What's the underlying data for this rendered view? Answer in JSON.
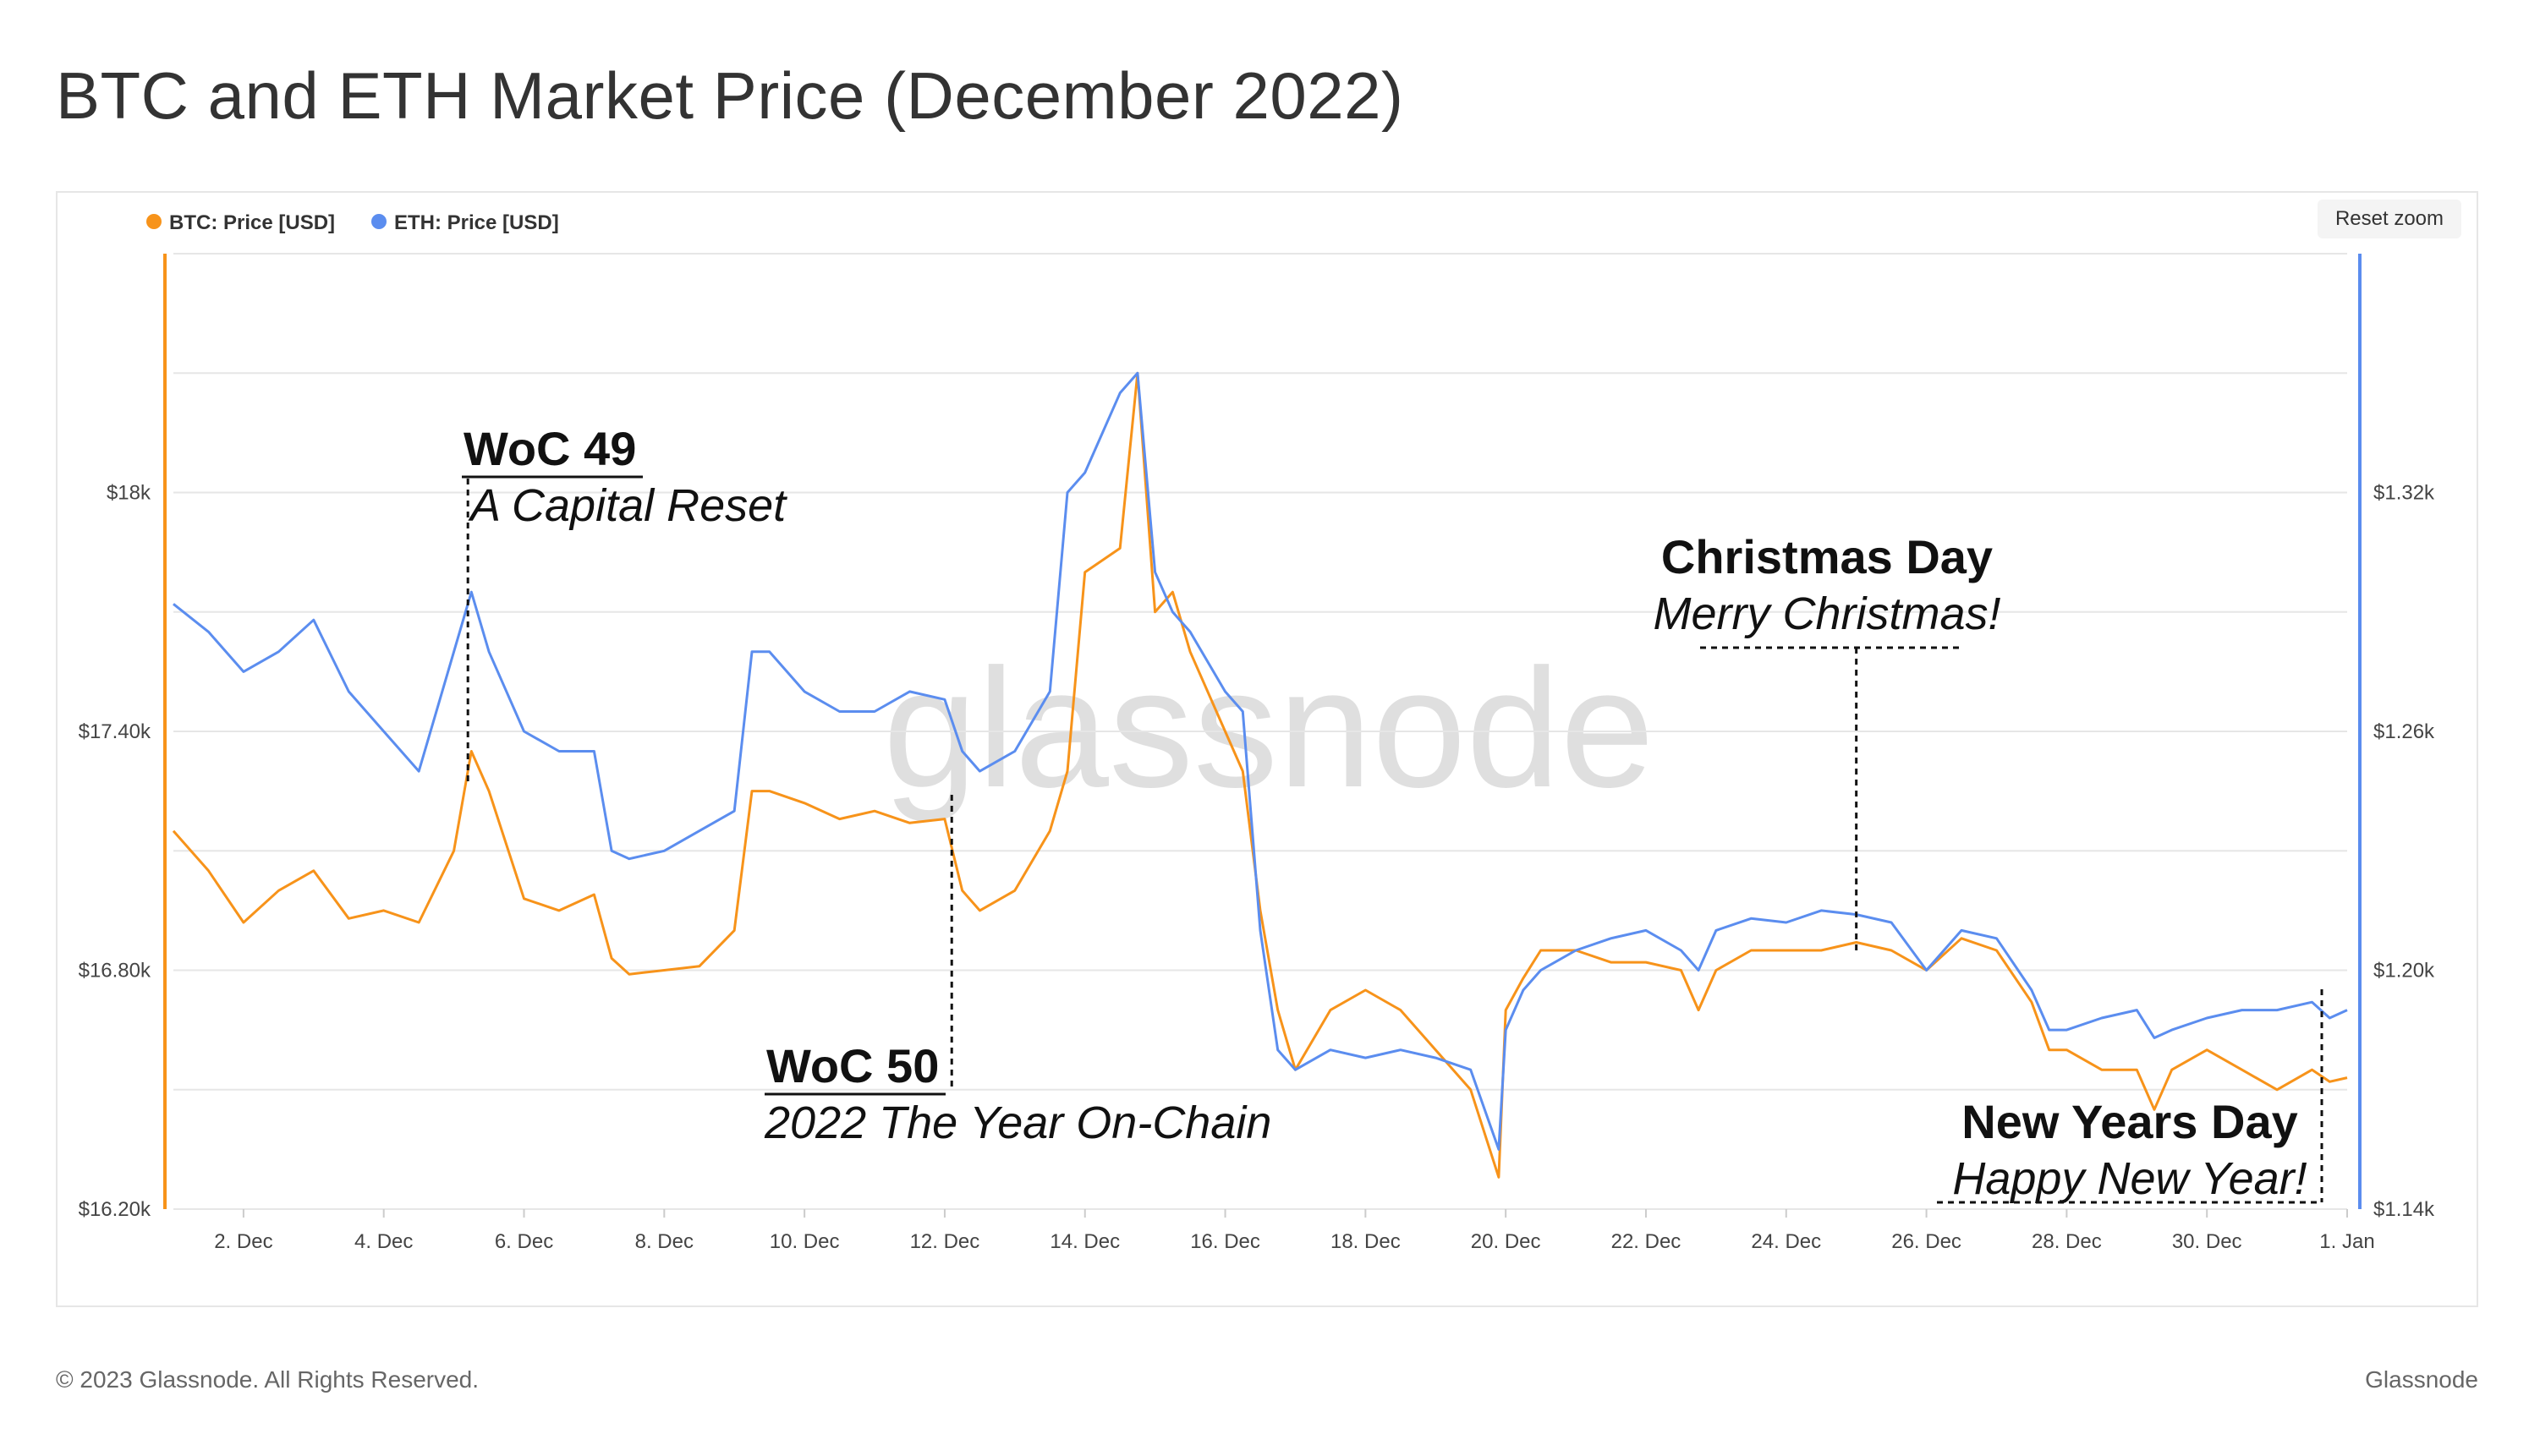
{
  "title": "BTC and ETH Market Price (December 2022)",
  "footer": {
    "copyright": "© 2023 Glassnode. All Rights Reserved.",
    "brand": "Glassnode"
  },
  "watermark": "glassnode",
  "reset_zoom_label": "Reset zoom",
  "colors": {
    "btc": "#f7931a",
    "eth": "#5b8def",
    "grid": "#e6e6e6",
    "annotation": "#111111"
  },
  "chart_data": {
    "type": "line",
    "title": "BTC and ETH Market Price (December 2022)",
    "legend_position": "top-left",
    "grid": true,
    "x_tick_labels": [
      "2. Dec",
      "4. Dec",
      "6. Dec",
      "8. Dec",
      "10. Dec",
      "12. Dec",
      "14. Dec",
      "16. Dec",
      "18. Dec",
      "20. Dec",
      "22. Dec",
      "24. Dec",
      "26. Dec",
      "28. Dec",
      "30. Dec",
      "1. Jan"
    ],
    "xlim": [
      1,
      32
    ],
    "y_left": {
      "ticks": [
        "$16.20k",
        "$16.80k",
        "$17.40k",
        "$18k"
      ],
      "range": [
        16200,
        18600
      ]
    },
    "y_right": {
      "ticks": [
        "$1.14k",
        "$1.20k",
        "$1.26k",
        "$1.32k"
      ],
      "range": [
        1140,
        1380
      ]
    },
    "series": [
      {
        "name": "BTC: Price [USD]",
        "axis": "left",
        "x": [
          1,
          1.5,
          2,
          2.5,
          3,
          3.5,
          4,
          4.5,
          5,
          5.25,
          5.5,
          6,
          6.5,
          7,
          7.25,
          7.5,
          8,
          8.5,
          9,
          9.25,
          9.5,
          10,
          10.5,
          11,
          11.5,
          12,
          12.25,
          12.5,
          13,
          13.5,
          13.75,
          14,
          14.5,
          14.75,
          15,
          15.25,
          15.5,
          16,
          16.25,
          16.5,
          16.75,
          17,
          17.5,
          18,
          18.5,
          19,
          19.5,
          19.9,
          20,
          20.25,
          20.5,
          21,
          21.5,
          22,
          22.5,
          22.75,
          23,
          23.5,
          24,
          24.5,
          25,
          25.5,
          26,
          26.5,
          27,
          27.5,
          27.75,
          28,
          28.5,
          29,
          29.25,
          29.5,
          30,
          30.5,
          31,
          31.5,
          31.75,
          32
        ],
        "values": [
          17150,
          17050,
          16920,
          17000,
          17050,
          16930,
          16950,
          16920,
          17100,
          17350,
          17250,
          16980,
          16950,
          16990,
          16830,
          16790,
          16800,
          16810,
          16900,
          17250,
          17250,
          17220,
          17180,
          17200,
          17170,
          17180,
          17000,
          16950,
          17000,
          17150,
          17300,
          17800,
          17860,
          18300,
          17700,
          17750,
          17600,
          17400,
          17300,
          16950,
          16700,
          16550,
          16700,
          16750,
          16700,
          16600,
          16500,
          16280,
          16700,
          16780,
          16850,
          16850,
          16820,
          16820,
          16800,
          16700,
          16800,
          16850,
          16850,
          16850,
          16870,
          16850,
          16800,
          16880,
          16850,
          16720,
          16600,
          16600,
          16550,
          16550,
          16450,
          16550,
          16600,
          16550,
          16500,
          16550,
          16520,
          16530
        ]
      },
      {
        "name": "ETH: Price [USD]",
        "axis": "right",
        "x": [
          1,
          1.5,
          2,
          2.5,
          3,
          3.5,
          4,
          4.5,
          5,
          5.25,
          5.5,
          6,
          6.5,
          7,
          7.25,
          7.5,
          8,
          8.5,
          9,
          9.25,
          9.5,
          10,
          10.5,
          11,
          11.5,
          12,
          12.25,
          12.5,
          13,
          13.5,
          13.75,
          14,
          14.5,
          14.75,
          15,
          15.25,
          15.5,
          16,
          16.25,
          16.5,
          16.75,
          17,
          17.5,
          18,
          18.5,
          19,
          19.5,
          19.9,
          20,
          20.25,
          20.5,
          21,
          21.5,
          22,
          22.5,
          22.75,
          23,
          23.5,
          24,
          24.5,
          25,
          25.5,
          26,
          26.5,
          27,
          27.5,
          27.75,
          28,
          28.5,
          29,
          29.25,
          29.5,
          30,
          30.5,
          31,
          31.5,
          31.75,
          32
        ],
        "values": [
          1292,
          1285,
          1275,
          1280,
          1288,
          1270,
          1260,
          1250,
          1280,
          1295,
          1280,
          1260,
          1255,
          1255,
          1230,
          1228,
          1230,
          1235,
          1240,
          1280,
          1280,
          1270,
          1265,
          1265,
          1270,
          1268,
          1255,
          1250,
          1255,
          1270,
          1320,
          1325,
          1345,
          1350,
          1300,
          1290,
          1285,
          1270,
          1265,
          1210,
          1180,
          1175,
          1180,
          1178,
          1180,
          1178,
          1175,
          1155,
          1185,
          1195,
          1200,
          1205,
          1208,
          1210,
          1205,
          1200,
          1210,
          1213,
          1212,
          1215,
          1214,
          1212,
          1200,
          1210,
          1208,
          1195,
          1185,
          1185,
          1188,
          1190,
          1183,
          1185,
          1188,
          1190,
          1190,
          1192,
          1188,
          1190
        ]
      }
    ],
    "annotations": [
      {
        "title": "WoC 49",
        "subtitle": "A Capital Reset",
        "x": 5.2
      },
      {
        "title": "WoC 50",
        "subtitle": "2022 The Year On-Chain",
        "x": 12.1
      },
      {
        "title": "Christmas Day",
        "subtitle": "Merry Christmas!",
        "x": 25
      },
      {
        "title": "New Years Day",
        "subtitle": "Happy New Year!",
        "x": 32
      }
    ]
  }
}
